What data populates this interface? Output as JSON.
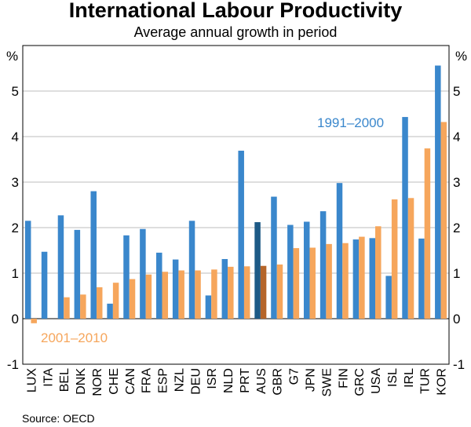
{
  "chart_data": {
    "type": "bar",
    "title": "International Labour Productivity",
    "subtitle": "Average annual growth in period",
    "ylabel_left": "%",
    "ylabel_right": "%",
    "ylim": [
      -1,
      6
    ],
    "yticks": [
      -1,
      0,
      1,
      2,
      3,
      4,
      5
    ],
    "grid": true,
    "categories": [
      "LUX",
      "ITA",
      "BEL",
      "DNK",
      "NOR",
      "CHE",
      "CAN",
      "FRA",
      "ESP",
      "NZL",
      "DEU",
      "ISR",
      "NLD",
      "PRT",
      "AUS",
      "GBR",
      "G7",
      "JPN",
      "SWE",
      "FIN",
      "GRC",
      "USA",
      "ISL",
      "IRL",
      "TUR",
      "KOR"
    ],
    "series": [
      {
        "name": "1991–2000",
        "color": "#3a87cc",
        "highlight_color": "#1d5a86",
        "values": [
          2.15,
          1.47,
          2.27,
          1.95,
          2.8,
          0.33,
          1.83,
          1.97,
          1.45,
          1.3,
          2.15,
          0.51,
          1.31,
          3.69,
          2.12,
          2.68,
          2.06,
          2.13,
          2.36,
          2.98,
          1.74,
          1.77,
          0.94,
          4.43,
          1.76,
          5.56
        ]
      },
      {
        "name": "2001–2010",
        "color": "#f6a65c",
        "highlight_color": "#b5652a",
        "values": [
          -0.1,
          0.0,
          0.47,
          0.53,
          0.69,
          0.79,
          0.87,
          0.97,
          1.03,
          1.06,
          1.06,
          1.08,
          1.14,
          1.15,
          1.16,
          1.19,
          1.55,
          1.56,
          1.64,
          1.66,
          1.8,
          2.03,
          2.62,
          2.65,
          3.74,
          4.32
        ]
      }
    ],
    "highlight_category": "AUS",
    "legend": [
      {
        "label": "1991–2000",
        "position": "upper-right"
      },
      {
        "label": "2001–2010",
        "position": "lower-left"
      }
    ],
    "source": "Source: OECD"
  }
}
